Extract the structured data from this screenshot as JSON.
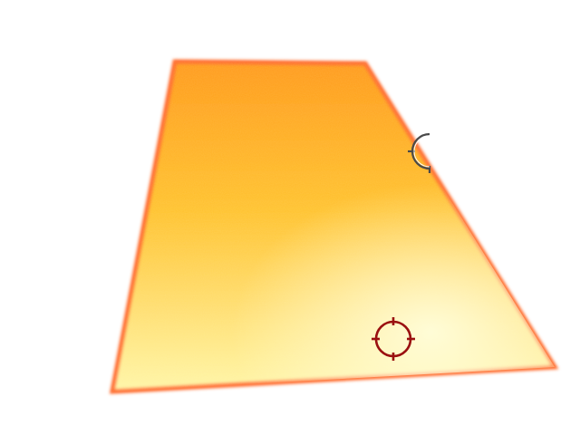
{
  "scene": {
    "background_color": "#ffffff",
    "surface": {
      "shape": "trapezoid",
      "colors": {
        "far_edge": "#ff9a1a",
        "middle": "#ffc22e",
        "near_edge": "#fff6a8",
        "rim": "#ff6a2a"
      }
    },
    "markers": [
      {
        "icon": "crosshair-icon",
        "state": "partially-hidden",
        "color": "#4a4a4a"
      },
      {
        "icon": "crosshair-icon",
        "state": "visible",
        "color": "#9a1010"
      }
    ]
  }
}
